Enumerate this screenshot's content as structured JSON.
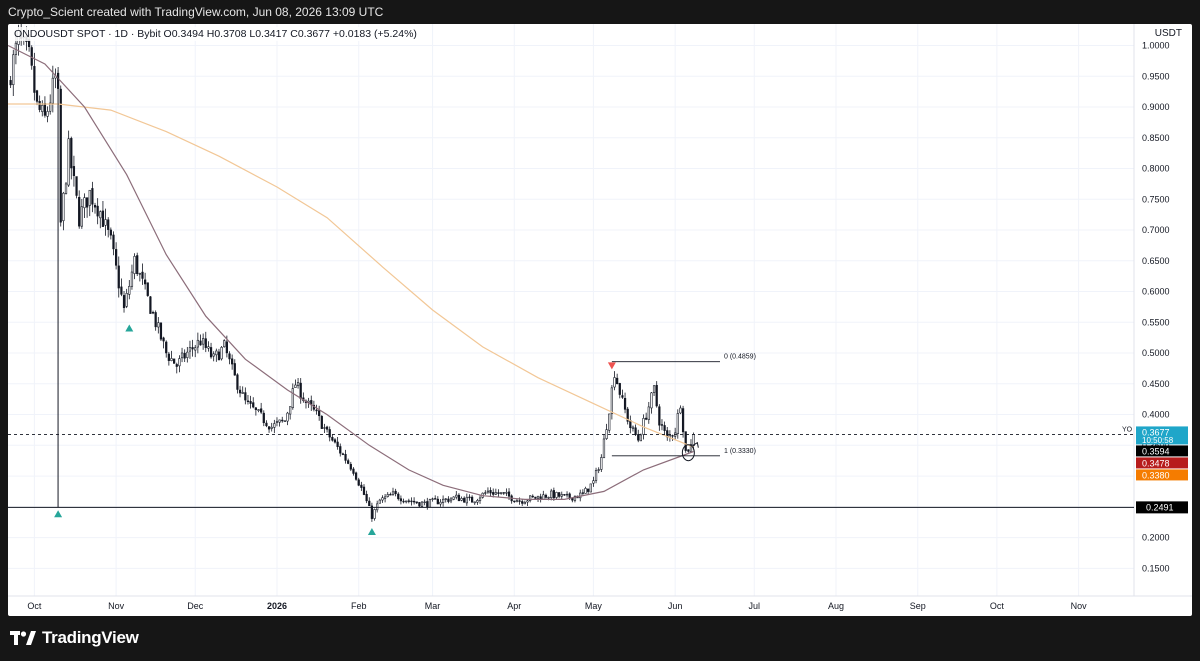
{
  "header": {
    "watermark": "Crypto_Scient created with TradingView.com, Jun 08, 2026 13:09 UTC"
  },
  "legend": {
    "text": "ONDOUSDT SPOT · 1D · Bybit  O0.3494  H0.3708  L0.3417  C0.3677  +0.0183 (+5.24%)"
  },
  "axis": {
    "currency": "USDT"
  },
  "footer": {
    "brand": "TradingView"
  },
  "colors": {
    "up": "#ffffff",
    "down": "#131722",
    "ma_fast": "#8c6d7a",
    "ma_slow": "#f2c796",
    "marker_up": "#26a69a",
    "marker_down": "#ef5350",
    "price_tag": "#1fa6c9",
    "tag_dark": "#000000",
    "tag_red": "#b71c1c",
    "tag_orange": "#f57c00"
  },
  "chart_data": {
    "type": "candlestick",
    "title": "ONDOUSDT SPOT · 1D · Bybit",
    "ohlc_last": {
      "open": 0.3494,
      "high": 0.3708,
      "low": 0.3417,
      "close": 0.3677,
      "change": 0.0183,
      "change_pct": 5.24
    },
    "y_ticks": [
      1.0,
      0.95,
      0.9,
      0.85,
      0.8,
      0.75,
      0.7,
      0.65,
      0.6,
      0.55,
      0.5,
      0.45,
      0.4,
      0.35,
      0.3,
      0.25,
      0.2,
      0.15
    ],
    "y_tick_labels": [
      "1.0000",
      "0.9500",
      "0.9000",
      "0.8500",
      "0.8000",
      "0.7500",
      "0.7000",
      "0.6500",
      "0.6000",
      "0.5500",
      "0.5000",
      "0.4500",
      "0.4000",
      "0.3500",
      "0.3000",
      "0.2500",
      "0.2000",
      "0.1500"
    ],
    "ylim": [
      0.105,
      1.035
    ],
    "x_start": "2025-09-21",
    "x_end": "2026-11-22",
    "x_ticks": [
      {
        "date": "2025-10-01",
        "label": "Oct"
      },
      {
        "date": "2025-11-01",
        "label": "Nov"
      },
      {
        "date": "2025-12-01",
        "label": "Dec"
      },
      {
        "date": "2026-01-01",
        "label": "2026"
      },
      {
        "date": "2026-02-01",
        "label": "Feb"
      },
      {
        "date": "2026-03-01",
        "label": "Mar"
      },
      {
        "date": "2026-04-01",
        "label": "Apr"
      },
      {
        "date": "2026-05-01",
        "label": "May"
      },
      {
        "date": "2026-06-01",
        "label": "Jun"
      },
      {
        "date": "2026-07-01",
        "label": "Jul"
      },
      {
        "date": "2026-08-01",
        "label": "Aug"
      },
      {
        "date": "2026-09-01",
        "label": "Sep"
      },
      {
        "date": "2026-10-01",
        "label": "Oct"
      },
      {
        "date": "2026-11-01",
        "label": "Nov"
      }
    ],
    "close_path": [
      [
        "2025-09-21",
        0.94
      ],
      [
        "2025-09-25",
        1.01
      ],
      [
        "2025-09-29",
        0.98
      ],
      [
        "2025-10-02",
        0.9
      ],
      [
        "2025-10-05",
        0.88
      ],
      [
        "2025-10-08",
        0.93
      ],
      [
        "2025-10-10",
        0.96
      ],
      [
        "2025-10-11",
        0.71
      ],
      [
        "2025-10-14",
        0.83
      ],
      [
        "2025-10-18",
        0.72
      ],
      [
        "2025-10-22",
        0.76
      ],
      [
        "2025-10-26",
        0.73
      ],
      [
        "2025-10-30",
        0.68
      ],
      [
        "2025-11-04",
        0.57
      ],
      [
        "2025-11-08",
        0.65
      ],
      [
        "2025-11-12",
        0.6
      ],
      [
        "2025-11-16",
        0.55
      ],
      [
        "2025-11-20",
        0.5
      ],
      [
        "2025-11-24",
        0.48
      ],
      [
        "2025-11-28",
        0.5
      ],
      [
        "2025-12-03",
        0.52
      ],
      [
        "2025-12-08",
        0.49
      ],
      [
        "2025-12-12",
        0.51
      ],
      [
        "2025-12-16",
        0.46
      ],
      [
        "2025-12-20",
        0.42
      ],
      [
        "2025-12-25",
        0.4
      ],
      [
        "2025-12-30",
        0.38
      ],
      [
        "2026-01-04",
        0.39
      ],
      [
        "2026-01-08",
        0.45
      ],
      [
        "2026-01-12",
        0.42
      ],
      [
        "2026-01-16",
        0.4
      ],
      [
        "2026-01-20",
        0.37
      ],
      [
        "2026-01-25",
        0.34
      ],
      [
        "2026-01-30",
        0.31
      ],
      [
        "2026-02-03",
        0.27
      ],
      [
        "2026-02-06",
        0.235
      ],
      [
        "2026-02-09",
        0.26
      ],
      [
        "2026-02-14",
        0.27
      ],
      [
        "2026-02-20",
        0.26
      ],
      [
        "2026-02-26",
        0.255
      ],
      [
        "2026-03-04",
        0.26
      ],
      [
        "2026-03-10",
        0.265
      ],
      [
        "2026-03-16",
        0.26
      ],
      [
        "2026-03-22",
        0.275
      ],
      [
        "2026-03-28",
        0.27
      ],
      [
        "2026-04-03",
        0.26
      ],
      [
        "2026-04-09",
        0.265
      ],
      [
        "2026-04-15",
        0.27
      ],
      [
        "2026-04-21",
        0.265
      ],
      [
        "2026-04-27",
        0.27
      ],
      [
        "2026-05-01",
        0.29
      ],
      [
        "2026-05-04",
        0.33
      ],
      [
        "2026-05-07",
        0.41
      ],
      [
        "2026-05-09",
        0.47
      ],
      [
        "2026-05-12",
        0.42
      ],
      [
        "2026-05-15",
        0.38
      ],
      [
        "2026-05-18",
        0.36
      ],
      [
        "2026-05-21",
        0.4
      ],
      [
        "2026-05-24",
        0.44
      ],
      [
        "2026-05-26",
        0.39
      ],
      [
        "2026-05-29",
        0.36
      ],
      [
        "2026-06-01",
        0.375
      ],
      [
        "2026-06-03",
        0.42
      ],
      [
        "2026-06-05",
        0.34
      ],
      [
        "2026-06-07",
        0.3494
      ],
      [
        "2026-06-08",
        0.3677
      ]
    ],
    "ma_fast": [
      [
        "2025-09-21",
        1.0
      ],
      [
        "2025-10-05",
        0.97
      ],
      [
        "2025-10-20",
        0.9
      ],
      [
        "2025-11-05",
        0.79
      ],
      [
        "2025-11-20",
        0.66
      ],
      [
        "2025-12-05",
        0.56
      ],
      [
        "2025-12-20",
        0.49
      ],
      [
        "2026-01-05",
        0.44
      ],
      [
        "2026-01-20",
        0.4
      ],
      [
        "2026-02-05",
        0.35
      ],
      [
        "2026-02-20",
        0.31
      ],
      [
        "2026-03-05",
        0.285
      ],
      [
        "2026-03-20",
        0.268
      ],
      [
        "2026-04-05",
        0.262
      ],
      [
        "2026-04-20",
        0.262
      ],
      [
        "2026-05-05",
        0.275
      ],
      [
        "2026-05-20",
        0.31
      ],
      [
        "2026-06-08",
        0.34
      ]
    ],
    "ma_slow": [
      [
        "2025-09-21",
        0.905
      ],
      [
        "2025-10-10",
        0.905
      ],
      [
        "2025-10-30",
        0.895
      ],
      [
        "2025-11-20",
        0.86
      ],
      [
        "2025-12-10",
        0.82
      ],
      [
        "2026-01-01",
        0.77
      ],
      [
        "2026-01-20",
        0.72
      ],
      [
        "2026-02-10",
        0.64
      ],
      [
        "2026-03-01",
        0.57
      ],
      [
        "2026-03-20",
        0.51
      ],
      [
        "2026-04-10",
        0.46
      ],
      [
        "2026-04-30",
        0.42
      ],
      [
        "2026-05-20",
        0.38
      ],
      [
        "2026-06-08",
        0.347
      ]
    ],
    "horizontal_levels": [
      {
        "name": "current-price-line",
        "value": 0.3677,
        "style": "dashed"
      },
      {
        "name": "support-line",
        "value": 0.2491,
        "style": "solid",
        "label": "0.2491"
      }
    ],
    "vertical_line": {
      "date": "2025-10-10",
      "from": 0.2491,
      "to": 0.96
    },
    "fib": {
      "from_date": "2026-05-08",
      "to_date": "2026-06-18",
      "levels": [
        {
          "value": 0.4859,
          "label": "0 (0.4859)"
        },
        {
          "value": 0.333,
          "label": "1 (0.3330)"
        }
      ]
    },
    "markers": [
      {
        "date": "2025-10-10",
        "value": 0.238,
        "type": "up"
      },
      {
        "date": "2025-11-06",
        "value": 0.54,
        "type": "up"
      },
      {
        "date": "2026-02-06",
        "value": 0.209,
        "type": "up"
      },
      {
        "date": "2026-05-08",
        "value": 0.48,
        "type": "down"
      }
    ],
    "circle_annotation": {
      "date": "2026-06-06",
      "value": 0.338
    },
    "price_tags": [
      {
        "value": 0.3677,
        "label": "0.3677",
        "sublabel": "10:50:58",
        "color": "#1fa6c9",
        "prefix": "YO"
      },
      {
        "value": 0.3594,
        "label": "0.3594",
        "color": "#000000"
      },
      {
        "value": 0.3478,
        "label": "0.3478",
        "color": "#b71c1c"
      },
      {
        "value": 0.338,
        "label": "0.3380",
        "color": "#f57c00"
      }
    ]
  }
}
